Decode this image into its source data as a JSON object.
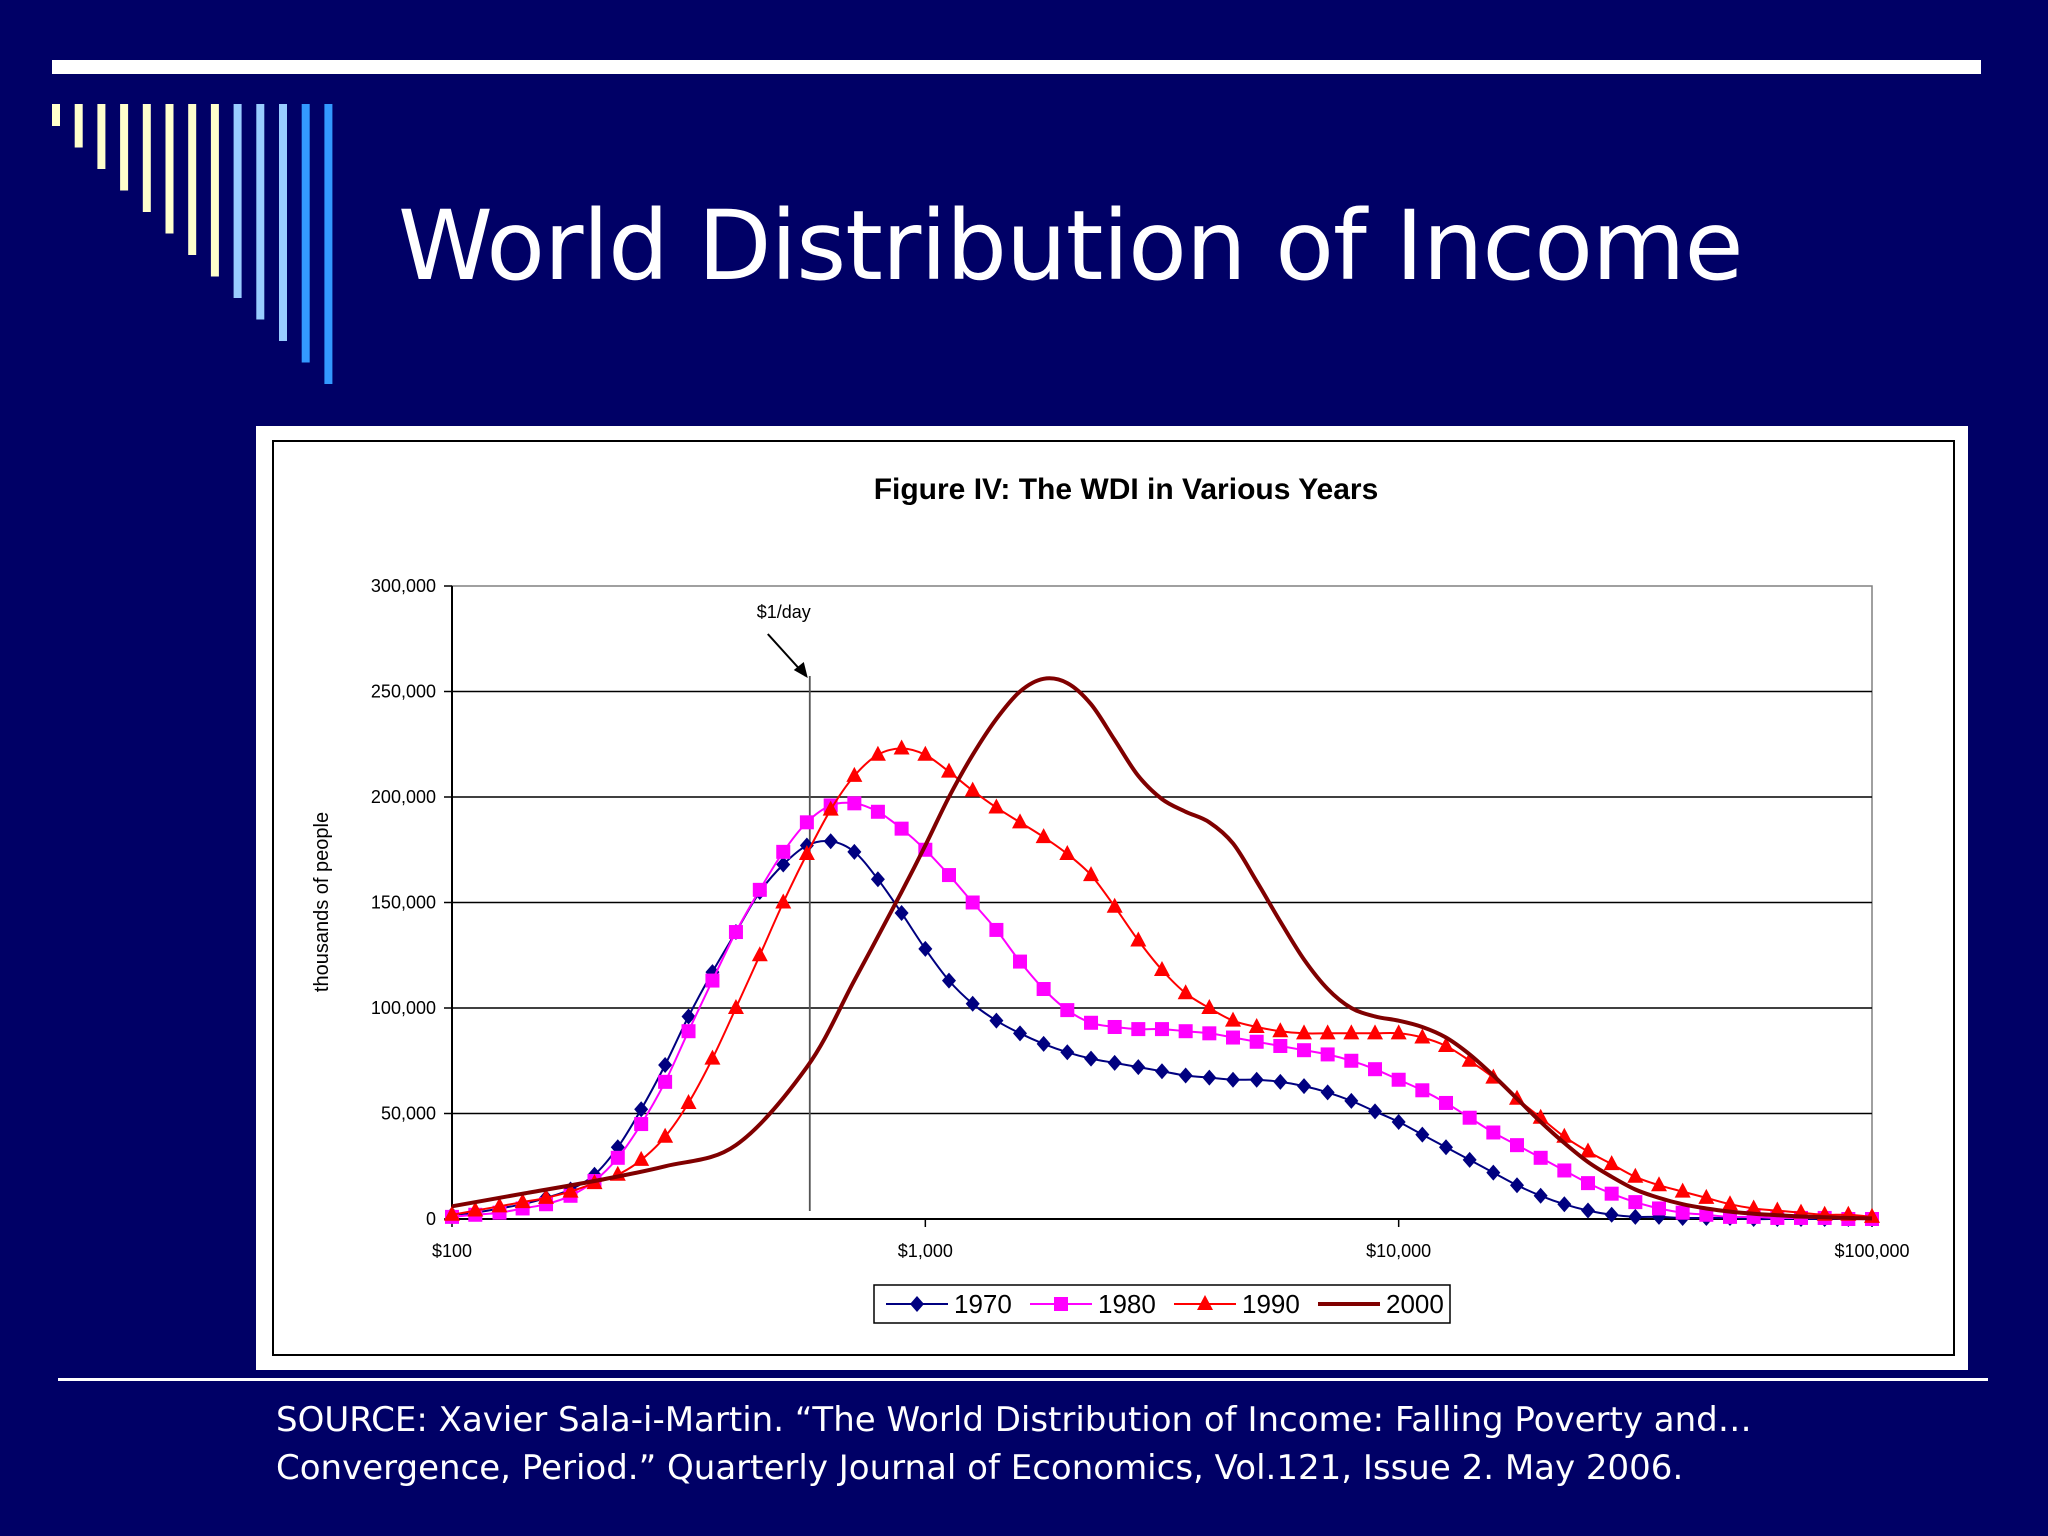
{
  "slide": {
    "title": "World Distribution of Income",
    "source_line1": "SOURCE:  Xavier Sala-i-Martin. “The World Distribution of Income: Falling Poverty and…",
    "source_line2": "Convergence, Period.”  Quarterly Journal of Economics, Vol.121, Issue 2.  May 2006.",
    "colors": {
      "background": "#000066",
      "rule": "#ffffff",
      "bars_light": "#ffffcc",
      "bars_mid": "#99ccff",
      "bars_blue": "#3399ff"
    }
  },
  "chart_data": {
    "type": "line",
    "title": "Figure IV: The WDI in Various Years",
    "ylabel": "thousands of people",
    "xlabel": "",
    "x_scale": "log",
    "xlim": [
      100,
      100000
    ],
    "ylim": [
      0,
      300000
    ],
    "x_ticks": [
      100,
      1000,
      10000,
      100000
    ],
    "x_tick_labels": [
      "$100",
      "$1,000",
      "$10,000",
      "$100,000"
    ],
    "y_ticks": [
      0,
      50000,
      100000,
      150000,
      200000,
      250000,
      300000
    ],
    "y_tick_labels": [
      "0",
      "50,000",
      "100,000",
      "150,000",
      "200,000",
      "250,000",
      "300,000"
    ],
    "grid": "horizontal",
    "legend_position": "bottom",
    "annotation": {
      "label": "$1/day",
      "x": 570
    },
    "series": [
      {
        "name": "1970",
        "color": "#000080",
        "marker": "diamond",
        "x": [
          100,
          112,
          126,
          141,
          158,
          178,
          200,
          224,
          251,
          282,
          316,
          355,
          398,
          447,
          501,
          562,
          631,
          708,
          794,
          891,
          1000,
          1122,
          1259,
          1413,
          1585,
          1778,
          1995,
          2239,
          2512,
          2818,
          3162,
          3548,
          3981,
          4467,
          5012,
          5623,
          6310,
          7079,
          7943,
          8913,
          10000,
          11220,
          12589,
          14125,
          15849,
          17783,
          19953,
          22387,
          25119,
          28184,
          31623,
          35481,
          39811,
          44668,
          50119,
          56234,
          63096,
          70795,
          79433,
          89125,
          100000
        ],
        "y": [
          2000,
          3000,
          5000,
          7000,
          10000,
          14000,
          21000,
          34000,
          52000,
          73000,
          96000,
          117000,
          136000,
          155000,
          168000,
          177000,
          179000,
          174000,
          161000,
          145000,
          128000,
          113000,
          102000,
          94000,
          88000,
          83000,
          79000,
          76000,
          74000,
          72000,
          70000,
          68000,
          67000,
          66000,
          66000,
          65000,
          63000,
          60000,
          56000,
          51000,
          46000,
          40000,
          34000,
          28000,
          22000,
          16000,
          11000,
          7000,
          4000,
          2000,
          1000,
          1000,
          500,
          500,
          500,
          0,
          0,
          0,
          0,
          0,
          0
        ]
      },
      {
        "name": "1980",
        "color": "#ff00ff",
        "marker": "square",
        "x": [
          100,
          112,
          126,
          141,
          158,
          178,
          200,
          224,
          251,
          282,
          316,
          355,
          398,
          447,
          501,
          562,
          631,
          708,
          794,
          891,
          1000,
          1122,
          1259,
          1413,
          1585,
          1778,
          1995,
          2239,
          2512,
          2818,
          3162,
          3548,
          3981,
          4467,
          5012,
          5623,
          6310,
          7079,
          7943,
          8913,
          10000,
          11220,
          12589,
          14125,
          15849,
          17783,
          19953,
          22387,
          25119,
          28184,
          31623,
          35481,
          39811,
          44668,
          50119,
          56234,
          63096,
          70795,
          79433,
          89125,
          100000
        ],
        "y": [
          1000,
          2000,
          3000,
          5000,
          7000,
          11000,
          18000,
          29000,
          45000,
          65000,
          89000,
          113000,
          136000,
          156000,
          174000,
          188000,
          196000,
          197000,
          193000,
          185000,
          175000,
          163000,
          150000,
          137000,
          122000,
          109000,
          99000,
          93000,
          91000,
          90000,
          90000,
          89000,
          88000,
          86000,
          84000,
          82000,
          80000,
          78000,
          75000,
          71000,
          66000,
          61000,
          55000,
          48000,
          41000,
          35000,
          29000,
          23000,
          17000,
          12000,
          8000,
          5000,
          3000,
          2000,
          1000,
          1000,
          500,
          500,
          500,
          0,
          0
        ]
      },
      {
        "name": "1990",
        "color": "#ff0000",
        "marker": "triangle",
        "x": [
          100,
          112,
          126,
          141,
          158,
          178,
          200,
          224,
          251,
          282,
          316,
          355,
          398,
          447,
          501,
          562,
          631,
          708,
          794,
          891,
          1000,
          1122,
          1259,
          1413,
          1585,
          1778,
          1995,
          2239,
          2512,
          2818,
          3162,
          3548,
          3981,
          4467,
          5012,
          5623,
          6310,
          7079,
          7943,
          8913,
          10000,
          11220,
          12589,
          14125,
          15849,
          17783,
          19953,
          22387,
          25119,
          28184,
          31623,
          35481,
          39811,
          44668,
          50119,
          56234,
          63096,
          70795,
          79433,
          89125,
          100000
        ],
        "y": [
          2000,
          4000,
          6000,
          8000,
          10000,
          13000,
          17000,
          21000,
          28000,
          39000,
          55000,
          76000,
          100000,
          125000,
          150000,
          173000,
          194000,
          210000,
          220000,
          223000,
          220000,
          212000,
          203000,
          195000,
          188000,
          181000,
          173000,
          163000,
          148000,
          132000,
          118000,
          107000,
          100000,
          94000,
          91000,
          89000,
          88000,
          88000,
          88000,
          88000,
          88000,
          86000,
          82000,
          75000,
          67000,
          57000,
          48000,
          39000,
          32000,
          26000,
          20000,
          16000,
          13000,
          10000,
          7000,
          5000,
          4000,
          3000,
          2000,
          2000,
          1000
        ]
      },
      {
        "name": "2000",
        "color": "#800000",
        "marker": "none",
        "x": [
          100,
          141,
          200,
          282,
          398,
          562,
          708,
          891,
          1000,
          1122,
          1259,
          1413,
          1585,
          1778,
          1995,
          2239,
          2512,
          2818,
          3162,
          3548,
          3981,
          4467,
          5012,
          5623,
          6310,
          7079,
          7943,
          8913,
          10000,
          11220,
          12589,
          14125,
          15849,
          17783,
          19953,
          22387,
          25119,
          28184,
          31623,
          35481,
          39811,
          44668,
          50119,
          56234,
          63096,
          70795,
          79433,
          89125,
          100000
        ],
        "y": [
          6000,
          12000,
          18000,
          25000,
          35000,
          72000,
          113000,
          155000,
          177000,
          200000,
          220000,
          237000,
          250000,
          256000,
          254000,
          244000,
          227000,
          210000,
          199000,
          193000,
          188000,
          178000,
          160000,
          141000,
          123000,
          109000,
          100000,
          96000,
          94000,
          91000,
          86000,
          78000,
          68000,
          57000,
          46000,
          36000,
          27000,
          20000,
          14000,
          10000,
          7000,
          5000,
          3500,
          2500,
          1800,
          1200,
          800,
          500,
          300
        ]
      }
    ]
  }
}
